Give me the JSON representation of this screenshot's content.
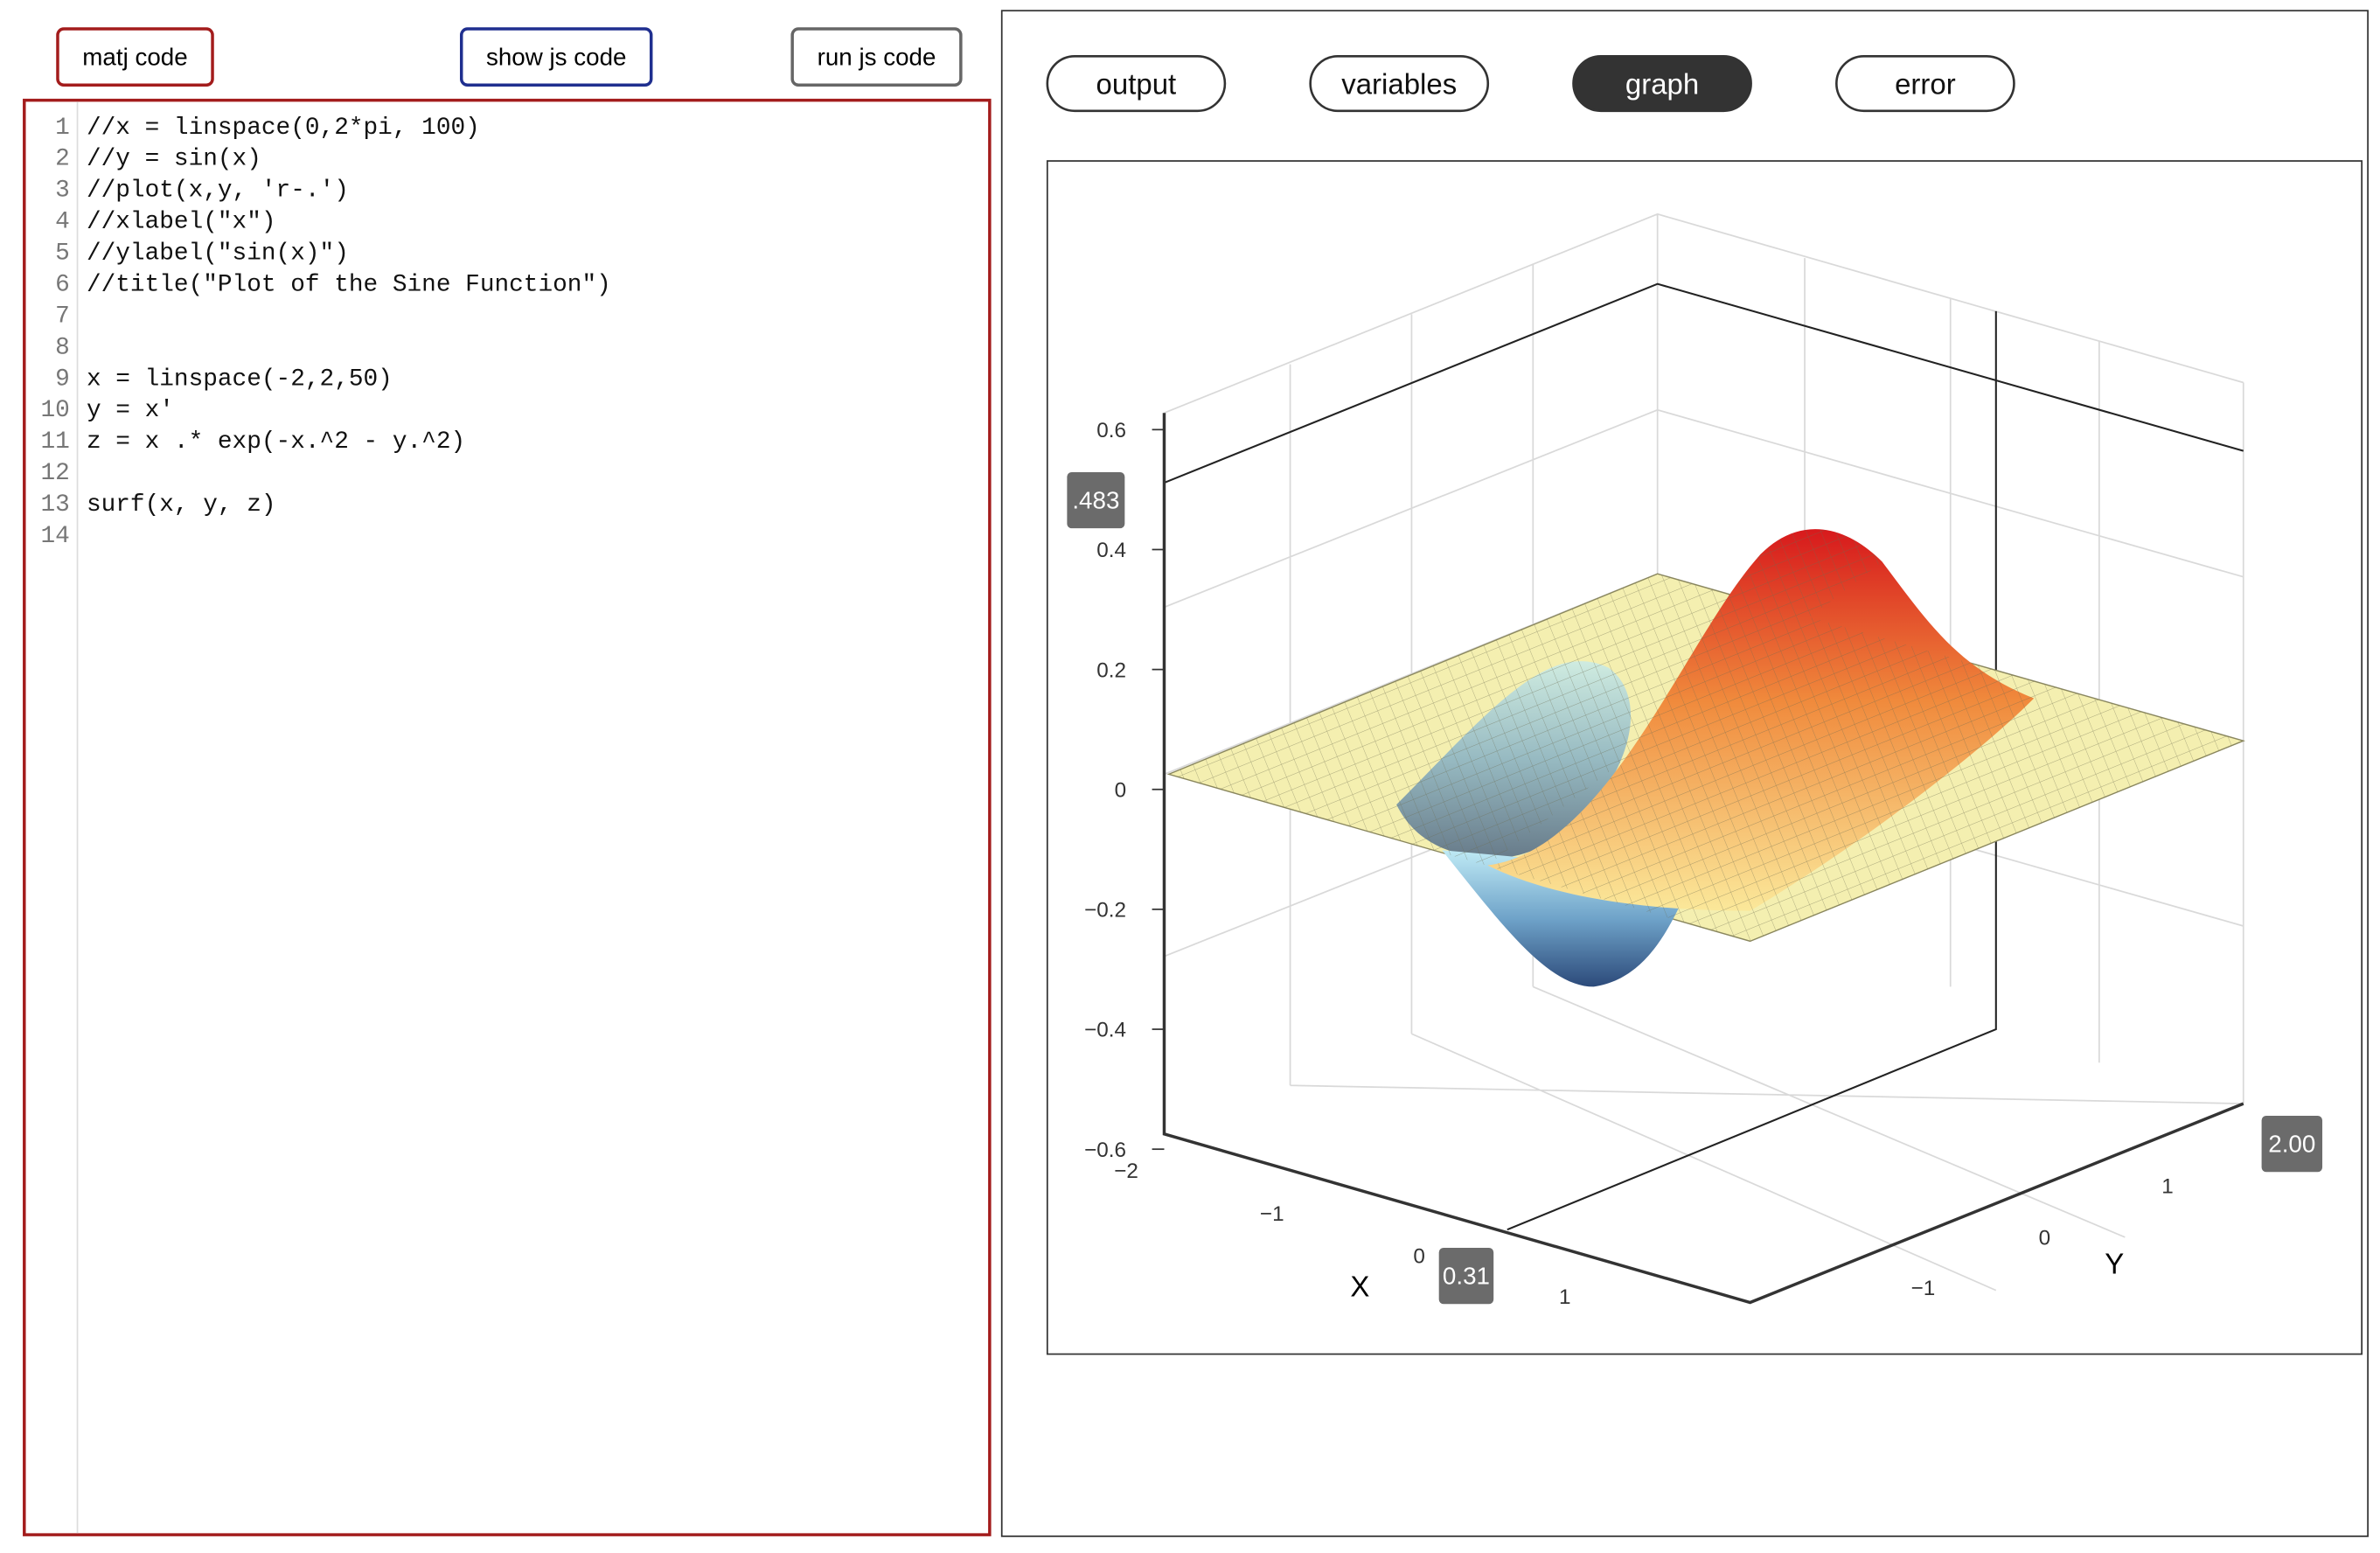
{
  "toolbar": {
    "buttons": [
      "matj code",
      "show js code",
      "run js code"
    ]
  },
  "editor": {
    "lines": [
      {
        "number": "1",
        "text": "//x = linspace(0,2*pi, 100)"
      },
      {
        "number": "2",
        "text": "//y = sin(x)"
      },
      {
        "number": "3",
        "text": "//plot(x,y, 'r-.')"
      },
      {
        "number": "4",
        "text": "//xlabel(\"x\")"
      },
      {
        "number": "5",
        "text": "//ylabel(\"sin(x)\")"
      },
      {
        "number": "6",
        "text": "//title(\"Plot of the Sine Function\")"
      },
      {
        "number": "7"
      },
      {
        "number": "8"
      },
      {
        "number": "9",
        "text": "x = linspace(-2,2,50)"
      },
      {
        "number": "10",
        "text": "y = x'"
      },
      {
        "number": "11",
        "text": "z = x .* exp(-x.^2 - y.^2)"
      },
      {
        "number": "12"
      },
      {
        "number": "13",
        "text": "surf(x, y, z)"
      },
      {
        "number": "14"
      }
    ]
  },
  "tabs": {
    "items": [
      "output",
      "variables",
      "graph",
      "error"
    ],
    "active": "graph"
  },
  "plot": {
    "x_label": "X",
    "y_label": "Y",
    "z_ticks": [
      "0.6",
      "0.4",
      "0.2",
      "0",
      "−0.2",
      "−0.4",
      "−0.6"
    ],
    "x_ticks": [
      "−2",
      "−1",
      "0",
      "1"
    ],
    "y_ticks": [
      "−1",
      "0",
      "1"
    ],
    "tooltips": [
      ".483",
      "0.31",
      "2.00"
    ]
  }
}
